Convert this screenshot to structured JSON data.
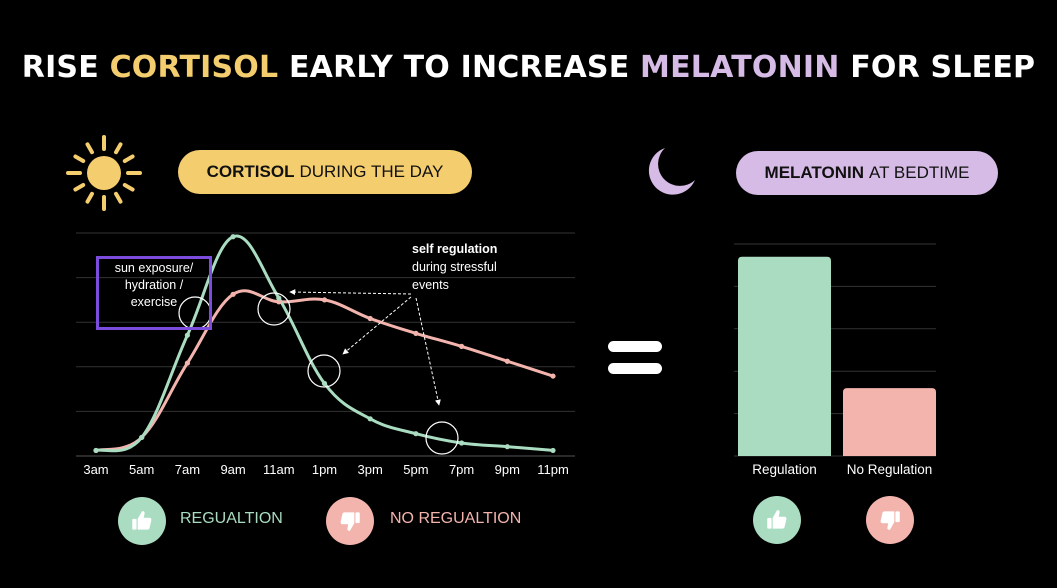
{
  "title": {
    "part1": "RISE ",
    "highlight1": "CORTISOL",
    "part2": " EARLY TO INCREASE ",
    "highlight2": "MELATONIN",
    "part3": " FOR SLEEP"
  },
  "colors": {
    "cortisol": "#f4cd6e",
    "melatonin": "#d5bbe5",
    "regulation": "#a9dcc0",
    "no_regulation": "#f3b4ad",
    "annotation_box": "#7c4ddd",
    "grid": "#333333"
  },
  "icons": {
    "sun": "sun-icon",
    "moon": "moon-icon",
    "thumb_up": "thumbs-up-icon",
    "thumb_down": "thumbs-down-icon"
  },
  "cortisol_pill": {
    "bold": "CORTISOL",
    "normal": "DURING THE DAY"
  },
  "melatonin_pill": {
    "bold": "MELATONIN",
    "normal": "AT BEDTIME"
  },
  "annotations": {
    "box_lines": [
      "sun exposure/",
      "hydration /",
      "exercise"
    ],
    "self_bold": "self regulation",
    "self_lines": [
      "during stressful",
      "events"
    ]
  },
  "legend": {
    "regulation": "REGUALTION",
    "no_regulation": "NO REGUALTION"
  },
  "chart_data": [
    {
      "type": "line",
      "x": [
        "3am",
        "5am",
        "7am",
        "9am",
        "11am",
        "1pm",
        "3pm",
        "5pm",
        "7pm",
        "9pm",
        "11pm"
      ],
      "series": [
        {
          "values": [
            0.3,
            1.0,
            6.5,
            11.8,
            8.5,
            3.9,
            2.0,
            1.2,
            0.7,
            0.5,
            0.3
          ]
        },
        {
          "values": [
            0.3,
            1.0,
            5.0,
            8.7,
            8.3,
            8.4,
            7.4,
            6.6,
            5.9,
            5.1,
            4.3
          ]
        }
      ],
      "ylim": [
        0,
        12
      ],
      "grid": true
    },
    {
      "type": "bar",
      "categories": [
        "Regulation",
        "No Regulation"
      ],
      "values": [
        4.7,
        1.6
      ],
      "ylim": [
        0,
        5
      ],
      "grid": true
    }
  ]
}
